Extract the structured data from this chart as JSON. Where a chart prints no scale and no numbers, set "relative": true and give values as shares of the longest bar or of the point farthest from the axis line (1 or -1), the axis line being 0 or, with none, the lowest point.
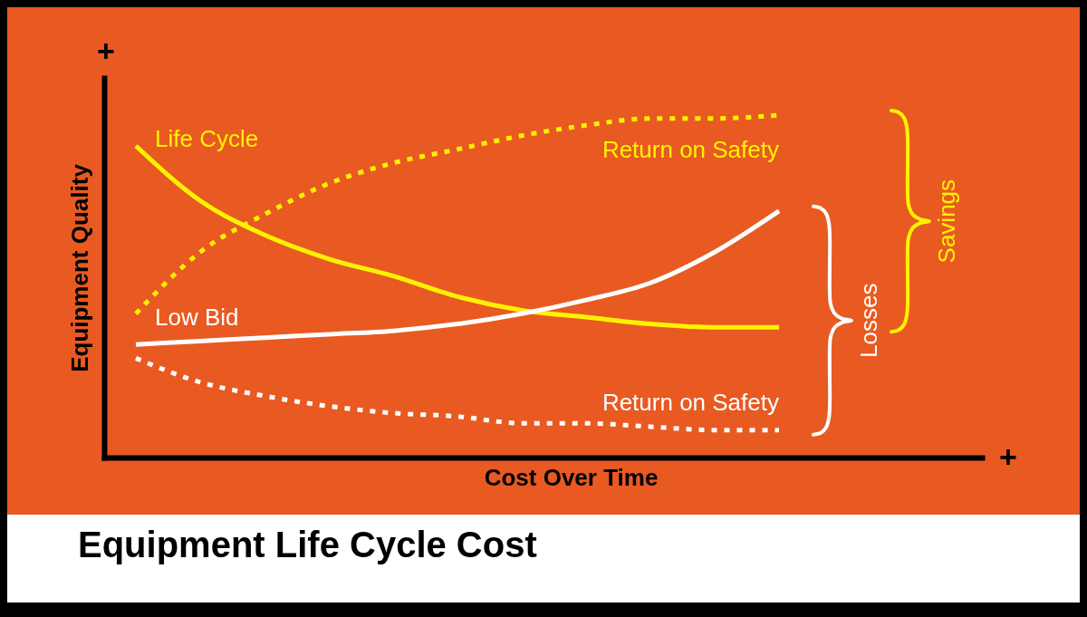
{
  "chart_data": {
    "type": "line",
    "title": "Equipment Life Cycle Cost",
    "xlabel": "Cost Over Time",
    "ylabel": "Equipment Quality",
    "relative": true,
    "categories": [
      null,
      null,
      null,
      null,
      null,
      null,
      null,
      null,
      null,
      null,
      null
    ],
    "series": [
      {
        "name": "Life Cycle",
        "color": "#fff200",
        "line_style": "solid",
        "values": [
          0.91,
          0.75,
          0.65,
          0.58,
          0.53,
          0.47,
          0.43,
          0.41,
          0.39,
          0.38,
          0.38
        ]
      },
      {
        "name": "Return on Safety",
        "color": "#fff200",
        "line_style": "dotted",
        "values": [
          0.42,
          0.6,
          0.71,
          0.8,
          0.86,
          0.9,
          0.94,
          0.97,
          0.99,
          0.99,
          1.0
        ]
      },
      {
        "name": "Low Bid",
        "color": "#ffffff",
        "line_style": "solid",
        "values": [
          0.33,
          0.34,
          0.35,
          0.36,
          0.37,
          0.39,
          0.42,
          0.46,
          0.51,
          0.6,
          0.72
        ]
      },
      {
        "name": "Return on Safety",
        "color": "#ffffff",
        "line_style": "dotted",
        "values": [
          0.29,
          0.22,
          0.18,
          0.15,
          0.13,
          0.12,
          0.1,
          0.1,
          0.09,
          0.08,
          0.08
        ]
      }
    ],
    "annotations": [
      "+",
      "+",
      "Losses",
      "Savings"
    ]
  }
}
